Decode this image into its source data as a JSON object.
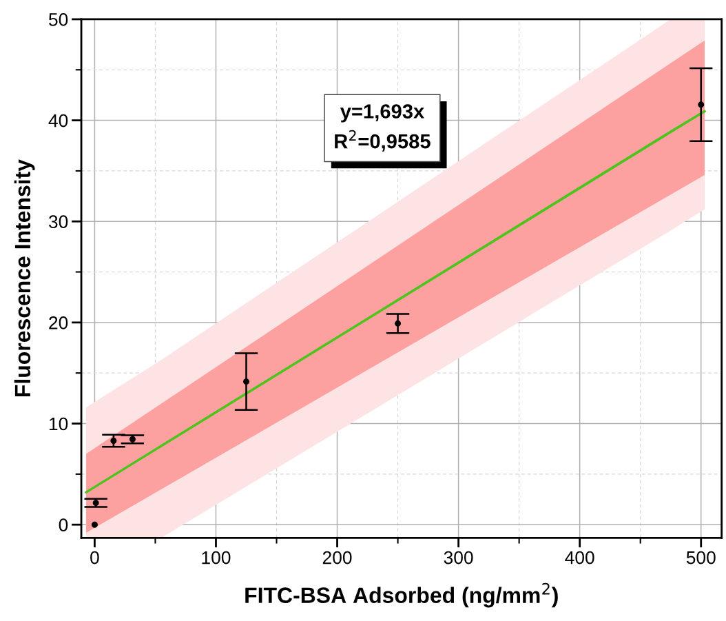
{
  "chart_data": {
    "type": "scatter",
    "xlabel": "FITC-BSA Adsorbed (ng/mm$^{2}$)",
    "ylabel": "Fluorescence Intensity",
    "annotations": [
      "y=1,693x\nR$^{2}$=0,9585"
    ],
    "xlim": [
      -11,
      517
    ],
    "ylim": [
      -1.3,
      50
    ],
    "xticks": [
      0,
      100,
      200,
      300,
      400,
      500
    ],
    "yticks": [
      0,
      10,
      20,
      30,
      40,
      50
    ],
    "grid": true,
    "series": [
      {
        "type": "line",
        "marker": "none",
        "color": "#4cc41c",
        "x": [
          -7,
          55,
          475,
          503
        ],
        "values": [
          3.2,
          7.8,
          38.9,
          40.9
        ],
        "lower": [
          -1.3,
          -1.3,
          29.1,
          31.2
        ],
        "upper": [
          11.6,
          16.3,
          50,
          50
        ]
      },
      {
        "type": "line",
        "marker": "none",
        "color": "#4cc41c",
        "x": [
          -7,
          503
        ],
        "values": [
          3.2,
          40.9
        ],
        "lower": [
          -0.8,
          34.6
        ],
        "upper": [
          7.0,
          47.9
        ]
      },
      {
        "marker": "circle",
        "color": "#000000",
        "x": [
          0,
          1,
          15.6,
          31.25,
          125,
          250,
          500
        ],
        "values": [
          0,
          2.15,
          8.3,
          8.45,
          14.15,
          19.9,
          41.55
        ],
        "errors": [
          null,
          0.4,
          0.6,
          0.4,
          2.8,
          0.95,
          3.6
        ]
      }
    ]
  }
}
